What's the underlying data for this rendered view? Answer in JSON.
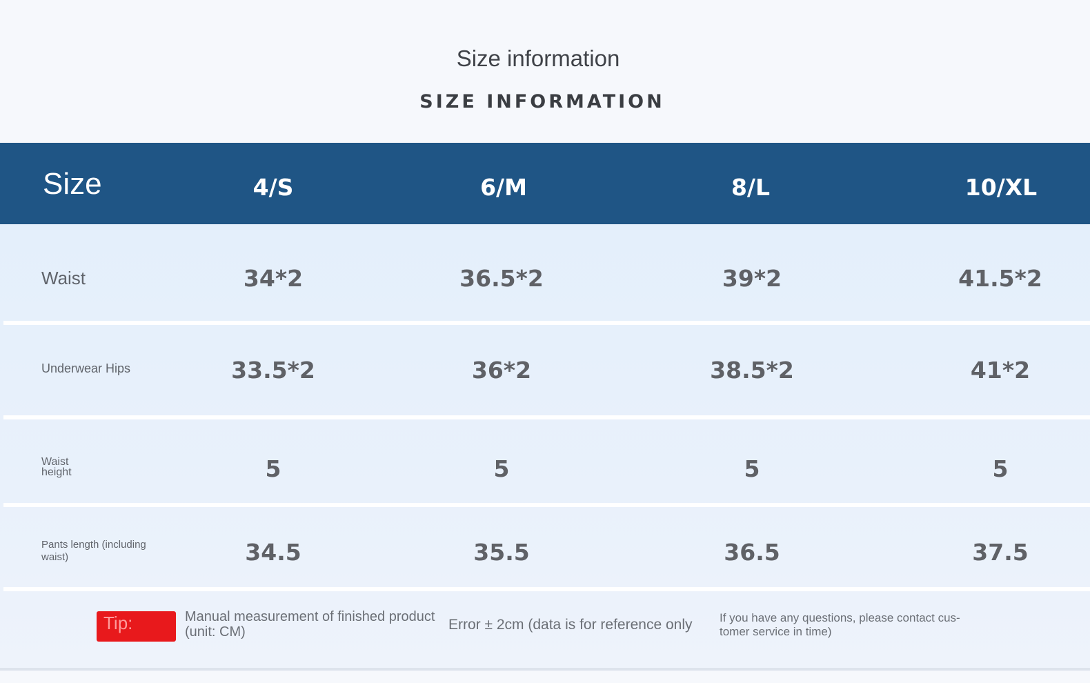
{
  "titles": {
    "main": "Size information",
    "caps": "SIZE INFORMATION"
  },
  "header": {
    "label": "Size",
    "sizes": [
      "4/S",
      "6/M",
      "8/L",
      "10/XL"
    ]
  },
  "rows": [
    {
      "label": "Waist",
      "values": [
        "34*2",
        "36.5*2",
        "39*2",
        "41.5*2"
      ]
    },
    {
      "label": "Underwear Hips",
      "values": [
        "33.5*2",
        "36*2",
        "38.5*2",
        "41*2"
      ]
    },
    {
      "label_line1": "Waist",
      "label_line2": "height",
      "values": [
        "5",
        "5",
        "5",
        "5"
      ]
    },
    {
      "label_line1": "Pants length (including",
      "label_line2": "waist)",
      "values": [
        "34.5",
        "35.5",
        "36.5",
        "37.5"
      ]
    }
  ],
  "footer": {
    "tip_label": "Tip:",
    "note1_line1": "Manual measurement of finished product",
    "note1_line2": "(unit: CM)",
    "note2": "Error ± 2cm (data is for reference only",
    "note3_line1": "If you have any questions, please contact cus-",
    "note3_line2": "tomer service in time)"
  },
  "colors": {
    "header_bg": "#1f5585",
    "tip_bg": "#e8191c",
    "row_bg": "#e6eff9"
  }
}
